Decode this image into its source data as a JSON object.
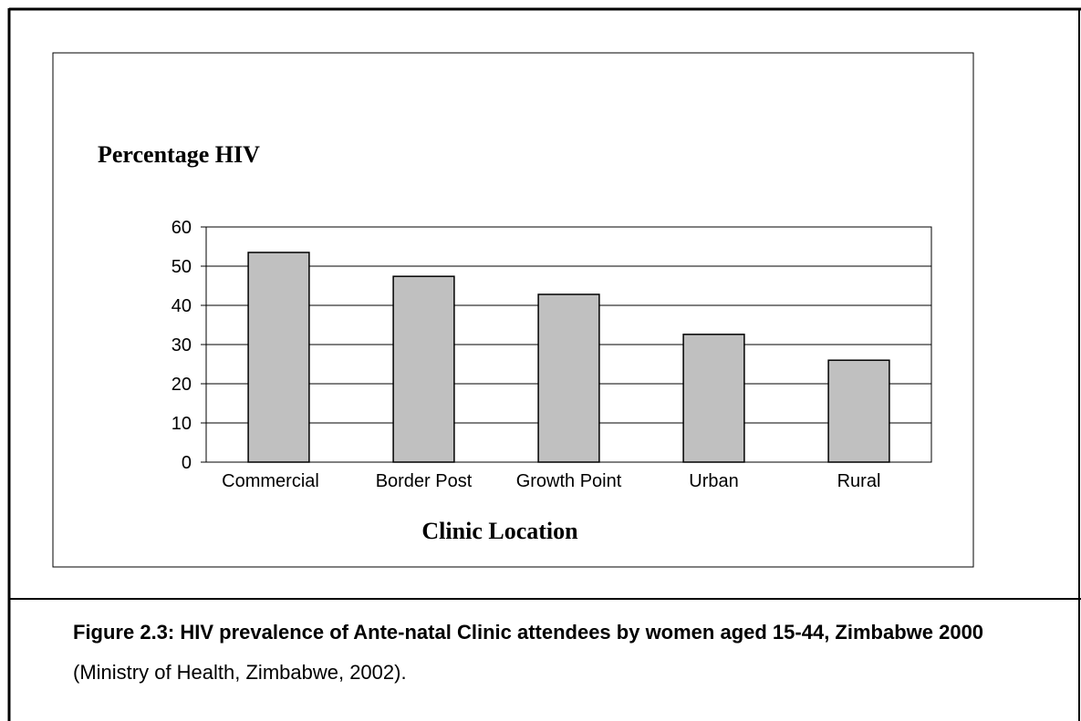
{
  "chart_data": {
    "type": "bar",
    "y_label": "Percentage HIV",
    "x_label": "Clinic Location",
    "categories": [
      "Commercial",
      "Border Post",
      "Growth Point",
      "Urban",
      "Rural"
    ],
    "values": [
      53.5,
      47.4,
      42.8,
      32.6,
      26
    ],
    "color": "#c0c0c0",
    "ylim": [
      0,
      60
    ],
    "yticks": [
      0,
      10,
      20,
      30,
      40,
      50,
      60
    ],
    "grid": true
  },
  "caption": {
    "bold": "Figure 2.3: HIV prevalence of Ante-natal Clinic attendees by women aged 15-44, Zimbabwe 2000",
    "normal": "(Ministry of Health, Zimbabwe, 2002)."
  }
}
